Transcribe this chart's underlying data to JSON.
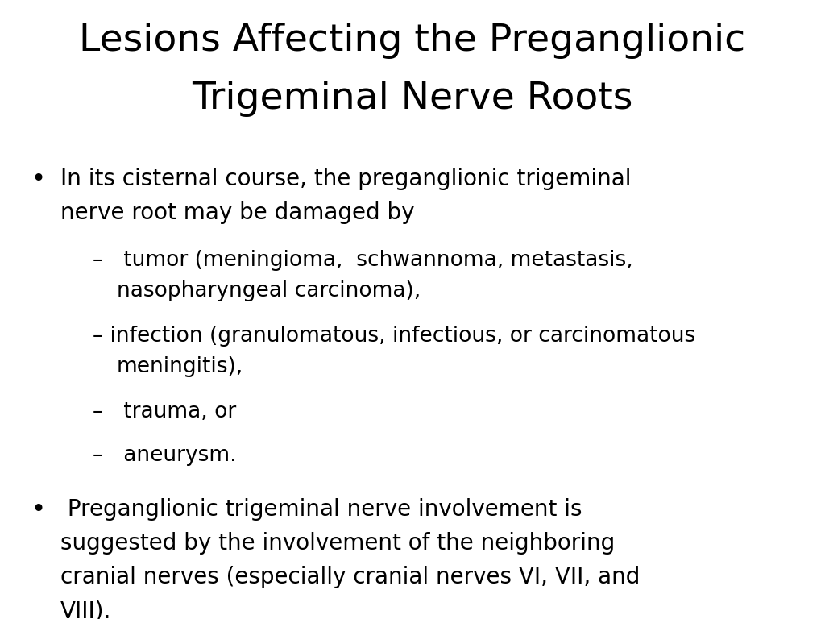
{
  "title_line1": "Lesions Affecting the Preganglionic",
  "title_line2": "Trigeminal Nerve Roots",
  "background_color": "#ffffff",
  "text_color": "#000000",
  "title_fontsize": 34,
  "body_fontsize": 20,
  "sub_fontsize": 19,
  "font_family": "DejaVu Sans",
  "bullet1_line1": "In its cisternal course, the preganglionic trigeminal",
  "bullet1_line2": "nerve root may be damaged by",
  "sub1_line1": "–   tumor (meningioma,  schwannoma, metastasis,",
  "sub1_line2": "nasopharyngeal carcinoma),",
  "sub2_line1": "– infection (granulomatous, infectious, or carcinomatous",
  "sub2_line2": "meningitis),",
  "sub3": "–   trauma, or",
  "sub4": "–   aneurysm.",
  "bullet2_line1": " Preganglionic trigeminal nerve involvement is",
  "bullet2_line2": "suggested by the involvement of the neighboring",
  "bullet2_line3": "cranial nerves (especially cranial nerves VI, VII, and",
  "bullet2_line4": "VIII).",
  "figwidth": 10.24,
  "figheight": 7.68,
  "dpi": 100
}
